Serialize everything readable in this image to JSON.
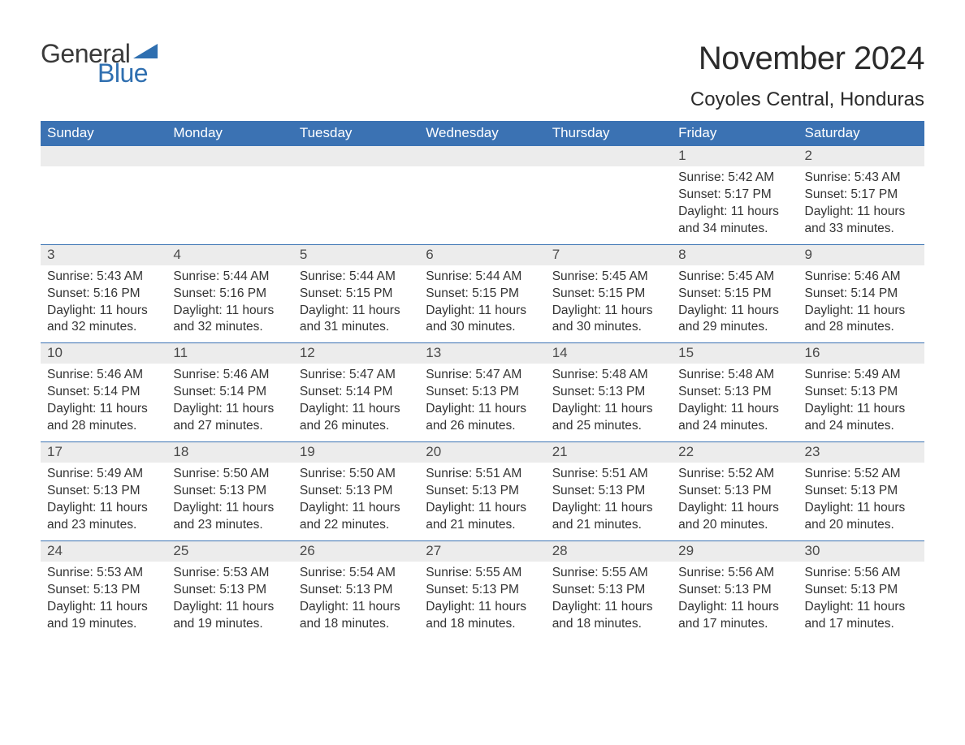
{
  "logo": {
    "text_general": "General",
    "text_blue": "Blue",
    "shape_color": "#2f6fb0"
  },
  "header": {
    "month_title": "November 2024",
    "location": "Coyoles Central, Honduras"
  },
  "colors": {
    "header_bg": "#3b72b3",
    "header_text": "#ffffff",
    "daynum_bg": "#ececec",
    "daynum_text": "#4a4a4a",
    "body_text": "#333333",
    "week_border": "#3b72b3",
    "page_bg": "#ffffff"
  },
  "fonts": {
    "title_size": 40,
    "location_size": 24,
    "dayheader_size": 17,
    "body_size": 15.5
  },
  "calendar": {
    "type": "table",
    "day_headers": [
      "Sunday",
      "Monday",
      "Tuesday",
      "Wednesday",
      "Thursday",
      "Friday",
      "Saturday"
    ],
    "weeks": [
      [
        {
          "empty": true
        },
        {
          "empty": true
        },
        {
          "empty": true
        },
        {
          "empty": true
        },
        {
          "empty": true
        },
        {
          "num": "1",
          "sunrise": "Sunrise: 5:42 AM",
          "sunset": "Sunset: 5:17 PM",
          "daylight": "Daylight: 11 hours and 34 minutes."
        },
        {
          "num": "2",
          "sunrise": "Sunrise: 5:43 AM",
          "sunset": "Sunset: 5:17 PM",
          "daylight": "Daylight: 11 hours and 33 minutes."
        }
      ],
      [
        {
          "num": "3",
          "sunrise": "Sunrise: 5:43 AM",
          "sunset": "Sunset: 5:16 PM",
          "daylight": "Daylight: 11 hours and 32 minutes."
        },
        {
          "num": "4",
          "sunrise": "Sunrise: 5:44 AM",
          "sunset": "Sunset: 5:16 PM",
          "daylight": "Daylight: 11 hours and 32 minutes."
        },
        {
          "num": "5",
          "sunrise": "Sunrise: 5:44 AM",
          "sunset": "Sunset: 5:15 PM",
          "daylight": "Daylight: 11 hours and 31 minutes."
        },
        {
          "num": "6",
          "sunrise": "Sunrise: 5:44 AM",
          "sunset": "Sunset: 5:15 PM",
          "daylight": "Daylight: 11 hours and 30 minutes."
        },
        {
          "num": "7",
          "sunrise": "Sunrise: 5:45 AM",
          "sunset": "Sunset: 5:15 PM",
          "daylight": "Daylight: 11 hours and 30 minutes."
        },
        {
          "num": "8",
          "sunrise": "Sunrise: 5:45 AM",
          "sunset": "Sunset: 5:15 PM",
          "daylight": "Daylight: 11 hours and 29 minutes."
        },
        {
          "num": "9",
          "sunrise": "Sunrise: 5:46 AM",
          "sunset": "Sunset: 5:14 PM",
          "daylight": "Daylight: 11 hours and 28 minutes."
        }
      ],
      [
        {
          "num": "10",
          "sunrise": "Sunrise: 5:46 AM",
          "sunset": "Sunset: 5:14 PM",
          "daylight": "Daylight: 11 hours and 28 minutes."
        },
        {
          "num": "11",
          "sunrise": "Sunrise: 5:46 AM",
          "sunset": "Sunset: 5:14 PM",
          "daylight": "Daylight: 11 hours and 27 minutes."
        },
        {
          "num": "12",
          "sunrise": "Sunrise: 5:47 AM",
          "sunset": "Sunset: 5:14 PM",
          "daylight": "Daylight: 11 hours and 26 minutes."
        },
        {
          "num": "13",
          "sunrise": "Sunrise: 5:47 AM",
          "sunset": "Sunset: 5:13 PM",
          "daylight": "Daylight: 11 hours and 26 minutes."
        },
        {
          "num": "14",
          "sunrise": "Sunrise: 5:48 AM",
          "sunset": "Sunset: 5:13 PM",
          "daylight": "Daylight: 11 hours and 25 minutes."
        },
        {
          "num": "15",
          "sunrise": "Sunrise: 5:48 AM",
          "sunset": "Sunset: 5:13 PM",
          "daylight": "Daylight: 11 hours and 24 minutes."
        },
        {
          "num": "16",
          "sunrise": "Sunrise: 5:49 AM",
          "sunset": "Sunset: 5:13 PM",
          "daylight": "Daylight: 11 hours and 24 minutes."
        }
      ],
      [
        {
          "num": "17",
          "sunrise": "Sunrise: 5:49 AM",
          "sunset": "Sunset: 5:13 PM",
          "daylight": "Daylight: 11 hours and 23 minutes."
        },
        {
          "num": "18",
          "sunrise": "Sunrise: 5:50 AM",
          "sunset": "Sunset: 5:13 PM",
          "daylight": "Daylight: 11 hours and 23 minutes."
        },
        {
          "num": "19",
          "sunrise": "Sunrise: 5:50 AM",
          "sunset": "Sunset: 5:13 PM",
          "daylight": "Daylight: 11 hours and 22 minutes."
        },
        {
          "num": "20",
          "sunrise": "Sunrise: 5:51 AM",
          "sunset": "Sunset: 5:13 PM",
          "daylight": "Daylight: 11 hours and 21 minutes."
        },
        {
          "num": "21",
          "sunrise": "Sunrise: 5:51 AM",
          "sunset": "Sunset: 5:13 PM",
          "daylight": "Daylight: 11 hours and 21 minutes."
        },
        {
          "num": "22",
          "sunrise": "Sunrise: 5:52 AM",
          "sunset": "Sunset: 5:13 PM",
          "daylight": "Daylight: 11 hours and 20 minutes."
        },
        {
          "num": "23",
          "sunrise": "Sunrise: 5:52 AM",
          "sunset": "Sunset: 5:13 PM",
          "daylight": "Daylight: 11 hours and 20 minutes."
        }
      ],
      [
        {
          "num": "24",
          "sunrise": "Sunrise: 5:53 AM",
          "sunset": "Sunset: 5:13 PM",
          "daylight": "Daylight: 11 hours and 19 minutes."
        },
        {
          "num": "25",
          "sunrise": "Sunrise: 5:53 AM",
          "sunset": "Sunset: 5:13 PM",
          "daylight": "Daylight: 11 hours and 19 minutes."
        },
        {
          "num": "26",
          "sunrise": "Sunrise: 5:54 AM",
          "sunset": "Sunset: 5:13 PM",
          "daylight": "Daylight: 11 hours and 18 minutes."
        },
        {
          "num": "27",
          "sunrise": "Sunrise: 5:55 AM",
          "sunset": "Sunset: 5:13 PM",
          "daylight": "Daylight: 11 hours and 18 minutes."
        },
        {
          "num": "28",
          "sunrise": "Sunrise: 5:55 AM",
          "sunset": "Sunset: 5:13 PM",
          "daylight": "Daylight: 11 hours and 18 minutes."
        },
        {
          "num": "29",
          "sunrise": "Sunrise: 5:56 AM",
          "sunset": "Sunset: 5:13 PM",
          "daylight": "Daylight: 11 hours and 17 minutes."
        },
        {
          "num": "30",
          "sunrise": "Sunrise: 5:56 AM",
          "sunset": "Sunset: 5:13 PM",
          "daylight": "Daylight: 11 hours and 17 minutes."
        }
      ]
    ]
  }
}
